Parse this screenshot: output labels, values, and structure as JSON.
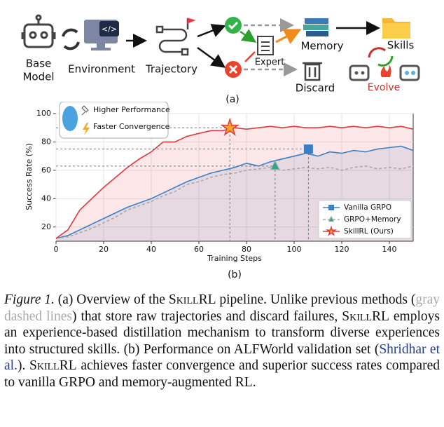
{
  "diagram": {
    "base_model": [
      "Base",
      "Model"
    ],
    "environment": "Environment",
    "trajectory": "Trajectory",
    "expert": "Expert",
    "memory": "Memory",
    "discard": "Discard",
    "skills": "Skills",
    "evolve": "Evolve",
    "subcaption": "(a)"
  },
  "chart_data": {
    "type": "line",
    "subcaption": "(b)",
    "x_label": "Training Steps",
    "y_label": "Success Rate (%)",
    "annotations": [
      "Higher Performance",
      "Faster Convergence"
    ],
    "x": [
      0,
      5,
      10,
      15,
      20,
      25,
      30,
      35,
      40,
      45,
      50,
      55,
      60,
      65,
      70,
      75,
      80,
      85,
      90,
      95,
      100,
      105,
      110,
      115,
      120,
      125,
      130,
      135,
      140,
      145,
      150
    ],
    "series": [
      {
        "name": "Vanilla GRPO",
        "color": "#3b7fc6",
        "marker": "square",
        "fill": true,
        "highlight": {
          "x": 106,
          "y": 75
        },
        "values": [
          12,
          14,
          18,
          22,
          26,
          30,
          34,
          37,
          40,
          44,
          48,
          52,
          55,
          58,
          60,
          62,
          65,
          63,
          66,
          68,
          70,
          72,
          70,
          73,
          72,
          74,
          73,
          75,
          76,
          77,
          74
        ]
      },
      {
        "name": "GRPO+Memory",
        "color": "#a8a8a8",
        "marker_color": "#2aa889",
        "marker": "triangle",
        "dashed": true,
        "fill": false,
        "highlight": {
          "x": 92,
          "y": 63
        },
        "values": [
          12,
          13,
          16,
          19,
          23,
          27,
          32,
          35,
          38,
          42,
          45,
          50,
          52,
          55,
          57,
          58,
          60,
          61,
          62,
          60,
          61,
          62,
          61,
          62,
          60,
          62,
          63,
          61,
          62,
          61,
          63
        ]
      },
      {
        "name": "SkillRL (Ours)",
        "color": "#e0393e",
        "marker_color": "#f5a623",
        "marker": "star",
        "fill": true,
        "highlight": {
          "x": 73,
          "y": 90
        },
        "values": [
          12,
          18,
          32,
          40,
          48,
          55,
          62,
          68,
          73,
          80,
          80,
          84,
          86,
          88,
          88,
          90,
          89,
          90,
          91,
          90,
          91,
          90,
          90,
          91,
          90,
          91,
          90,
          91,
          90,
          91,
          89
        ]
      }
    ],
    "xlim": [
      0,
      150
    ],
    "ylim": [
      10,
      100
    ],
    "xticks": [
      0,
      20,
      40,
      60,
      80,
      100,
      120,
      140
    ],
    "yticks": [
      20,
      40,
      60,
      80,
      100
    ],
    "grid": true,
    "legend": "lower right"
  },
  "caption": {
    "label": "Figure 1.",
    "segments": [
      "(a) Overview of the ",
      "SkillRL",
      " pipeline. Unlike previous methods (",
      "gray dashed lines",
      ") that store raw trajectories and discard failures, ",
      "SkillRL",
      " employs an experience-based distillation mechanism to transform diverse experiences into structured skills. (b) Performance on ALFWorld validation set (",
      "Shridhar et al.",
      "). ",
      "SkillRL",
      " achieves faster convergence and superior success rates compared to vanilla GRPO and memory-augmented RL."
    ]
  }
}
